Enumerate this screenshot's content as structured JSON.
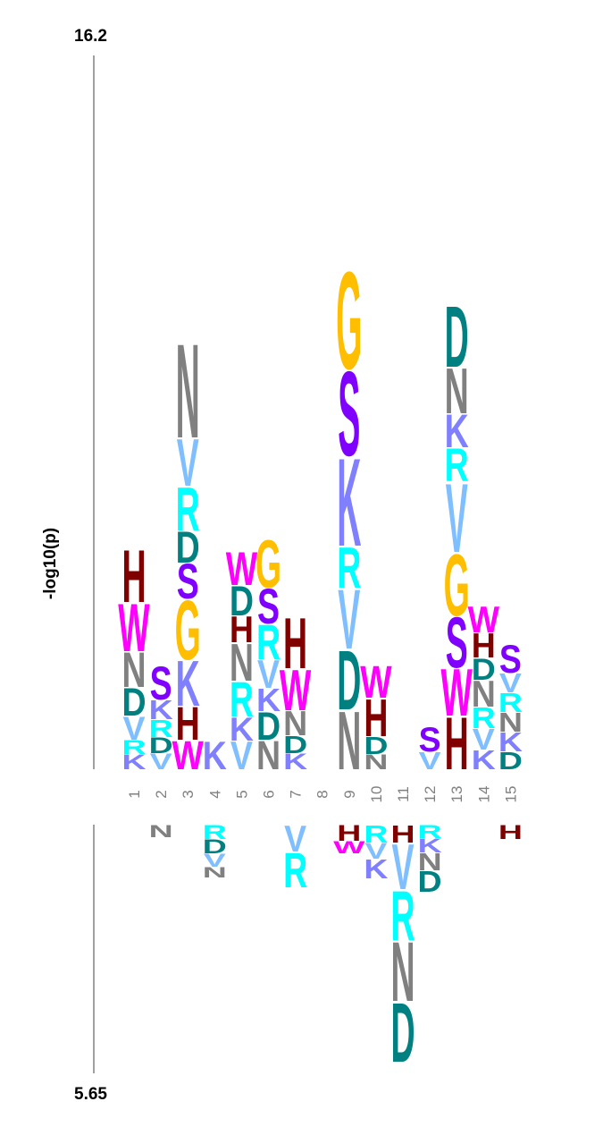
{
  "chart_data": {
    "type": "sequence-logo",
    "ylabel": "-log10(p)",
    "ymax_label": "16.2",
    "ymin_label": "5.65",
    "positions": [
      "1",
      "2",
      "3",
      "4",
      "5",
      "6",
      "7",
      "8",
      "9",
      "10",
      "11",
      "12",
      "13",
      "14",
      "15"
    ],
    "upper": [
      [
        "K",
        "R",
        "V",
        "D",
        "N",
        "W",
        "H"
      ],
      [
        "V",
        "D",
        "R",
        "K",
        "S"
      ],
      [
        "W",
        "H",
        "K",
        "G",
        "S",
        "D",
        "R",
        "V",
        "N"
      ],
      [
        "K"
      ],
      [
        "V",
        "K",
        "R",
        "N",
        "H",
        "D",
        "W"
      ],
      [
        "N",
        "D",
        "K",
        "V",
        "R",
        "S",
        "G"
      ],
      [
        "K",
        "D",
        "N",
        "W",
        "H"
      ],
      [],
      [
        "N",
        "D",
        "V",
        "R",
        "K",
        "S",
        "G"
      ],
      [
        "N",
        "D",
        "H",
        "W"
      ],
      [],
      [
        "V",
        "S"
      ],
      [
        "H",
        "W",
        "S",
        "G",
        "V",
        "R",
        "K",
        "N",
        "D"
      ],
      [
        "K",
        "V",
        "R",
        "N",
        "D",
        "H",
        "W"
      ],
      [
        "D",
        "K",
        "N",
        "R",
        "V",
        "S"
      ]
    ],
    "lower": [
      [],
      [
        "N"
      ],
      [],
      [
        "R",
        "D",
        "V",
        "N"
      ],
      [],
      [],
      [
        "V",
        "R"
      ],
      [],
      [
        "H",
        "W"
      ],
      [
        "R",
        "V",
        "K"
      ],
      [
        "H",
        "V",
        "R",
        "N",
        "D"
      ],
      [
        "R",
        "K",
        "N",
        "D"
      ],
      [],
      [],
      [
        "H"
      ]
    ],
    "colors": {
      "N": "#808080",
      "V": "#80bfff",
      "R": "#00ffff",
      "D": "#008080",
      "S": "#8000ff",
      "G": "#ffbf00",
      "K": "#8080ff",
      "H": "#800000",
      "W": "#ff00ff"
    }
  }
}
